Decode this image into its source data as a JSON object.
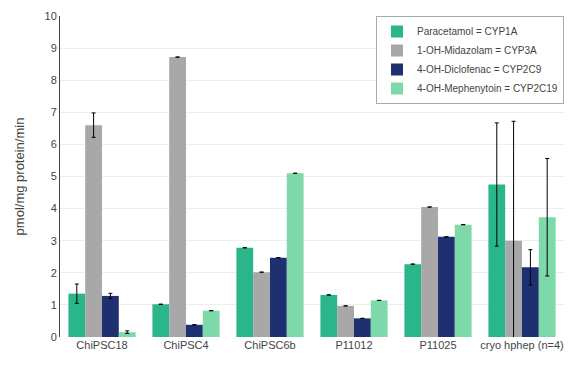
{
  "chart_data": {
    "type": "bar",
    "categories": [
      "ChiPSC18",
      "ChiPSC4",
      "ChiPSC6b",
      "P11012",
      "P11025",
      "cryo hphep (n=4)"
    ],
    "series": [
      {
        "name": "Paracetamol = CYP1A",
        "color": "#2ab58a",
        "values": [
          1.35,
          1.02,
          2.78,
          1.31,
          2.27,
          4.75
        ],
        "errors": [
          0.3,
          0.0,
          0.0,
          0.0,
          0.0,
          1.92
        ]
      },
      {
        "name": "1-OH-Midazolam = CYP3A",
        "color": "#a8a8a8",
        "values": [
          6.6,
          8.72,
          2.02,
          0.97,
          4.05,
          3.0
        ],
        "errors": [
          0.38,
          0.0,
          0.0,
          0.0,
          0.0,
          3.72
        ]
      },
      {
        "name": "4-OH-Diclofenac = CYP2C9",
        "color": "#1e3070",
        "values": [
          1.28,
          0.38,
          2.47,
          0.58,
          3.12,
          2.17
        ],
        "errors": [
          0.08,
          0.0,
          0.0,
          0.0,
          0.0,
          0.55
        ]
      },
      {
        "name": "4-OH-Mephenytoin = CYP2C19",
        "color": "#7dd9aa",
        "values": [
          0.15,
          0.82,
          5.1,
          1.14,
          3.5,
          3.73
        ],
        "errors": [
          0.04,
          0.0,
          0.0,
          0.0,
          0.0,
          1.83
        ]
      }
    ],
    "ylabel": "pmol/mg protein/min",
    "ylim": [
      0,
      10
    ],
    "yticks": [
      0,
      1,
      2,
      3,
      4,
      5,
      6,
      7,
      8,
      9,
      10
    ],
    "grid": true,
    "legend": "upper right"
  }
}
